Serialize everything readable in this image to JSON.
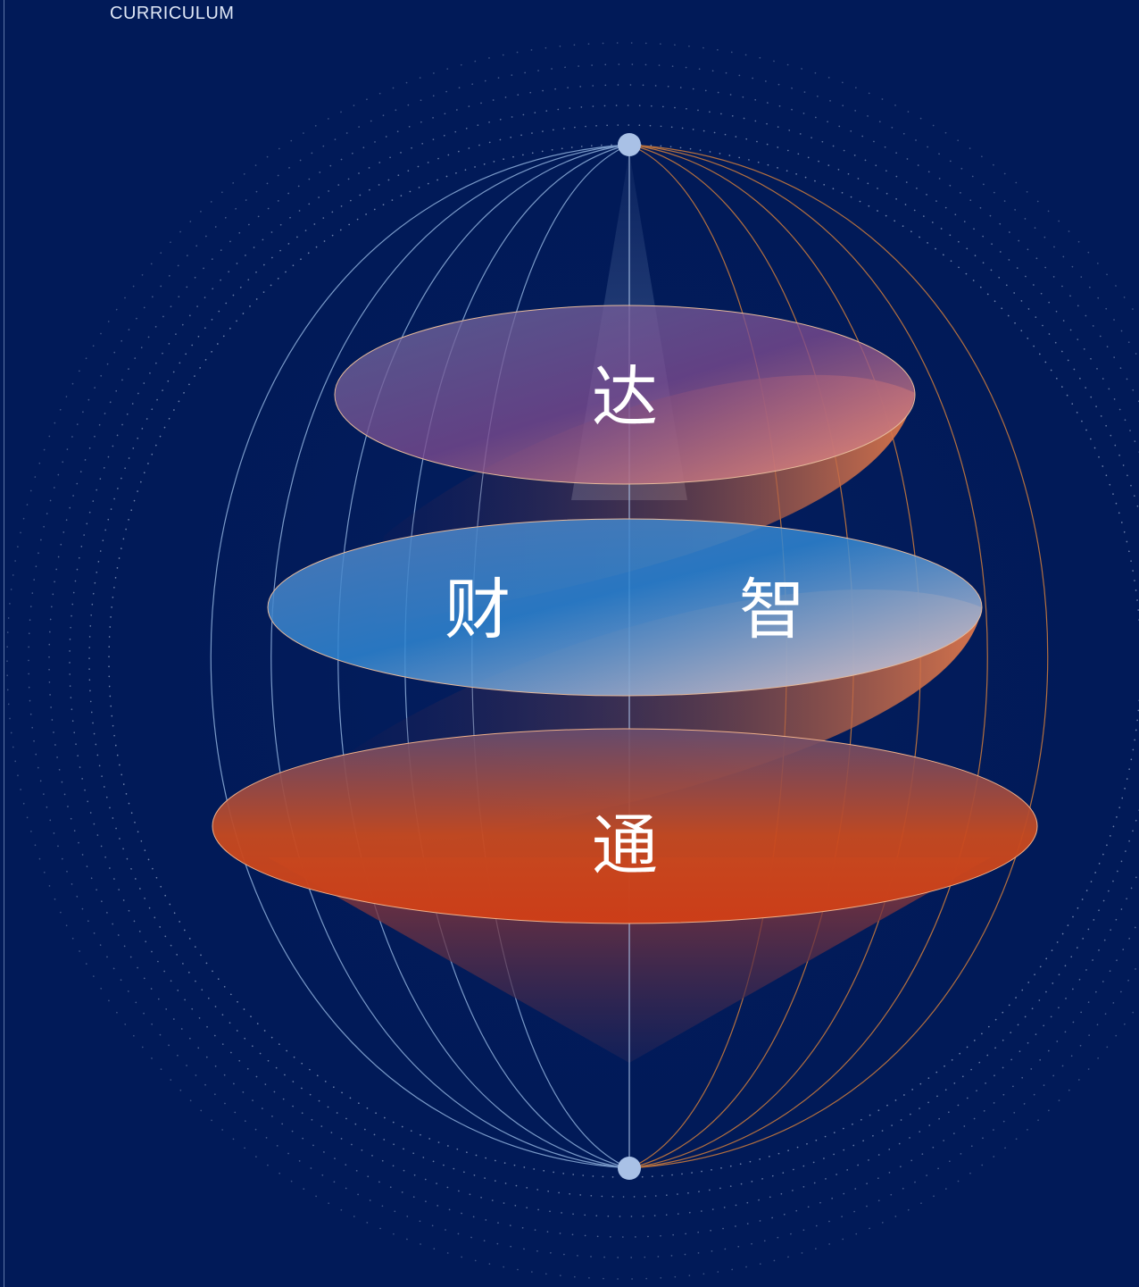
{
  "header": {
    "section_label": "CURRICULUM"
  },
  "diagram": {
    "levels": [
      {
        "id": "top",
        "char": "达"
      },
      {
        "id": "middle-left",
        "char": "财"
      },
      {
        "id": "middle-right",
        "char": "智"
      },
      {
        "id": "bottom",
        "char": "通"
      }
    ]
  },
  "colors": {
    "background": "#011a58",
    "meridian_blue": "#8fb0dc",
    "meridian_orange": "#c7793d",
    "accent_orange": "#d2431b",
    "accent_pink": "#c66590",
    "node": "#a9c1e6"
  }
}
